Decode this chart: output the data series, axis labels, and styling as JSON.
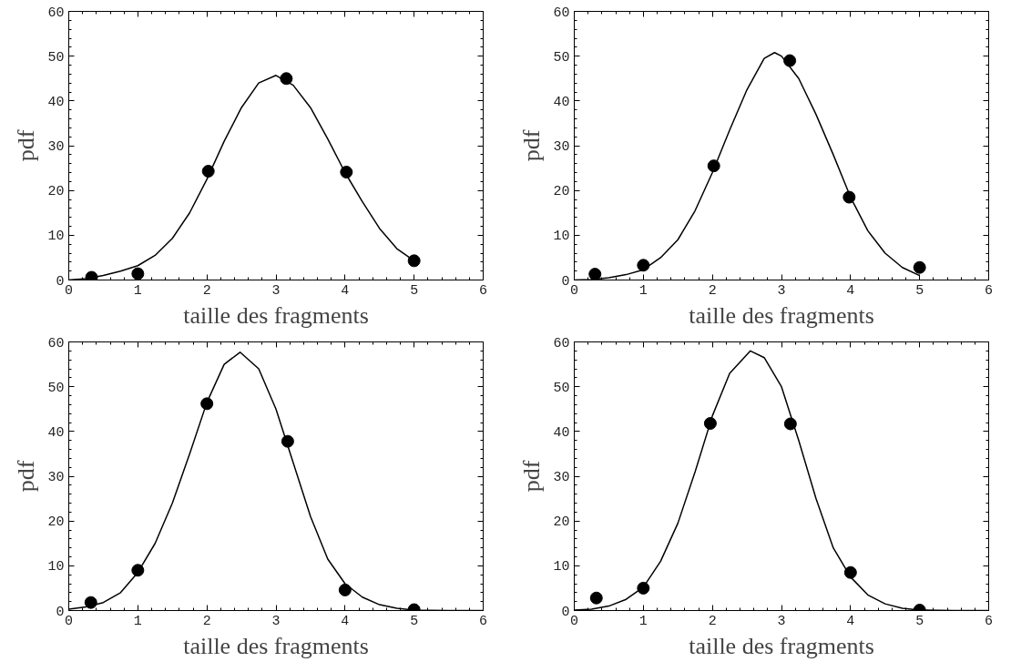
{
  "chart_data": [
    {
      "type": "line",
      "xlabel": "taille des fragments",
      "ylabel": "pdf",
      "xlim": [
        0,
        6
      ],
      "ylim": [
        0,
        60
      ],
      "xticks": [
        0,
        1,
        2,
        3,
        4,
        5,
        6
      ],
      "yticks": [
        0,
        10,
        20,
        30,
        40,
        50,
        60
      ],
      "grid": false,
      "line_style": "solid",
      "series": [
        {
          "color": "#000000",
          "x": [
            0,
            0.25,
            0.5,
            0.75,
            1,
            1.25,
            1.5,
            1.75,
            2,
            2.25,
            2.5,
            2.75,
            3,
            3.25,
            3.5,
            3.75,
            4,
            4.25,
            4.5,
            4.75,
            5
          ],
          "values": [
            0,
            0.3,
            1,
            2,
            3.2,
            5.5,
            9.3,
            15,
            22.5,
            31,
            38.5,
            44,
            45.7,
            43.5,
            38.5,
            31.5,
            24,
            17.5,
            11.5,
            7,
            4.3
          ]
        },
        {
          "type": "scatter",
          "marker": "circle",
          "color": "#000000",
          "x": [
            0.33,
            1,
            2.02,
            3.15,
            4.02,
            5
          ],
          "values": [
            0.6,
            1.4,
            24.3,
            45,
            24.1,
            4.3
          ]
        }
      ]
    },
    {
      "type": "line",
      "xlabel": "taille des fragments",
      "ylabel": "pdf",
      "xlim": [
        0,
        6
      ],
      "ylim": [
        0,
        60
      ],
      "xticks": [
        0,
        1,
        2,
        3,
        4,
        5,
        6
      ],
      "yticks": [
        0,
        10,
        20,
        30,
        40,
        50,
        60
      ],
      "grid": false,
      "line_style": "solid",
      "series": [
        {
          "color": "#000000",
          "x": [
            0,
            0.25,
            0.5,
            0.75,
            1,
            1.25,
            1.5,
            1.75,
            2,
            2.25,
            2.5,
            2.75,
            2.9,
            3,
            3.25,
            3.5,
            3.75,
            4,
            4.25,
            4.5,
            4.75,
            5
          ],
          "values": [
            0,
            0.1,
            0.5,
            1.2,
            2.3,
            5,
            9,
            15.5,
            24,
            33.5,
            42.5,
            49.5,
            50.8,
            50,
            45,
            37,
            28,
            18.5,
            11,
            6,
            2.8,
            1
          ]
        },
        {
          "type": "scatter",
          "marker": "circle",
          "color": "#000000",
          "x": [
            0.3,
            1,
            2.02,
            3.12,
            3.98,
            5
          ],
          "values": [
            1.3,
            3.3,
            25.5,
            49,
            18.5,
            2.8
          ]
        }
      ]
    },
    {
      "type": "line",
      "xlabel": "taille des fragments",
      "ylabel": "pdf",
      "xlim": [
        0,
        6
      ],
      "ylim": [
        0,
        60
      ],
      "xticks": [
        0,
        1,
        2,
        3,
        4,
        5,
        6
      ],
      "yticks": [
        0,
        10,
        20,
        30,
        40,
        50,
        60
      ],
      "grid": false,
      "line_style": "solid",
      "series": [
        {
          "color": "#000000",
          "x": [
            0,
            0.25,
            0.5,
            0.75,
            1,
            1.25,
            1.5,
            1.75,
            2,
            2.25,
            2.48,
            2.75,
            3,
            3.25,
            3.5,
            3.75,
            4,
            4.25,
            4.5,
            4.75,
            5,
            5.5,
            6
          ],
          "values": [
            0.3,
            0.8,
            1.8,
            4,
            8.5,
            15,
            24,
            35,
            46.5,
            55,
            57.7,
            54,
            45,
            33,
            21,
            11.5,
            6,
            3,
            1.3,
            0.5,
            0.1,
            0,
            0
          ]
        },
        {
          "type": "scatter",
          "marker": "circle",
          "color": "#000000",
          "x": [
            0.32,
            1,
            2,
            3.17,
            4,
            5
          ],
          "values": [
            1.8,
            9,
            46.2,
            37.8,
            4.6,
            0.2
          ]
        }
      ]
    },
    {
      "type": "line",
      "xlabel": "taille des fragments",
      "ylabel": "pdf",
      "xlim": [
        0,
        6
      ],
      "ylim": [
        0,
        60
      ],
      "xticks": [
        0,
        1,
        2,
        3,
        4,
        5,
        6
      ],
      "yticks": [
        0,
        10,
        20,
        30,
        40,
        50,
        60
      ],
      "grid": false,
      "line_style": "solid",
      "series": [
        {
          "color": "#000000",
          "x": [
            0,
            0.25,
            0.5,
            0.75,
            1,
            1.25,
            1.5,
            1.75,
            2,
            2.25,
            2.55,
            2.75,
            3,
            3.25,
            3.5,
            3.75,
            4,
            4.25,
            4.5,
            4.75,
            5,
            5.5,
            6
          ],
          "values": [
            0.1,
            0.3,
            1,
            2.5,
            5.2,
            11,
            19.5,
            31,
            43.5,
            53,
            58,
            56.5,
            50,
            38,
            25,
            14,
            7.5,
            3.5,
            1.5,
            0.5,
            0.1,
            0,
            0
          ]
        },
        {
          "type": "scatter",
          "marker": "circle",
          "color": "#000000",
          "x": [
            0.32,
            1,
            1.97,
            3.13,
            4,
            5
          ],
          "values": [
            2.8,
            5,
            41.8,
            41.7,
            8.5,
            0.1
          ]
        }
      ]
    }
  ]
}
